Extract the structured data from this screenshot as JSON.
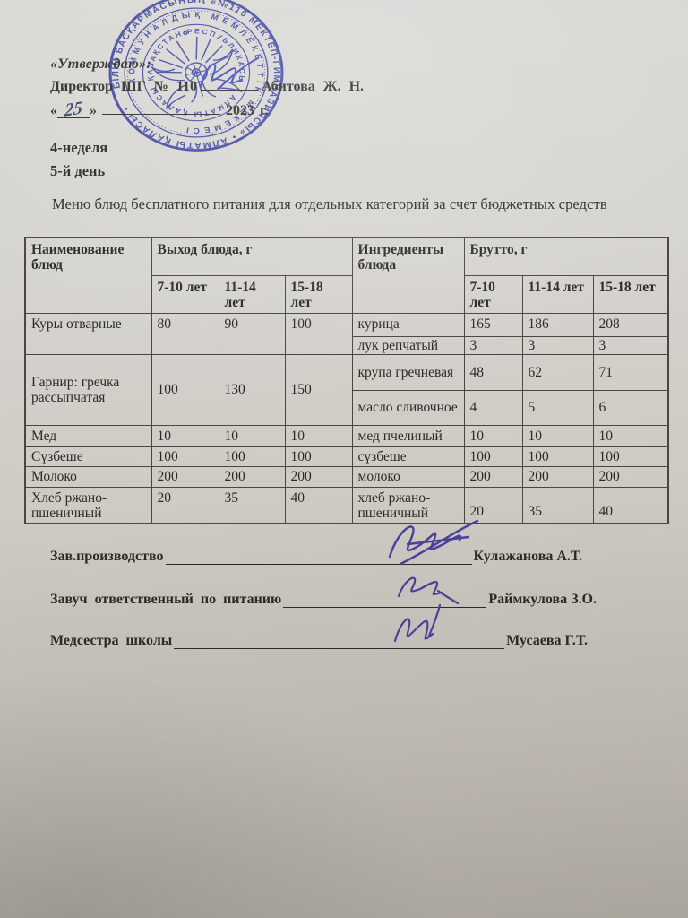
{
  "approval": {
    "approved_label": "«Утверждаю»:",
    "director_prefix": "Директор ШГ № 110",
    "director_name": "Абитова Ж. Н.",
    "date_open": "«",
    "date_day": "25",
    "date_close": "»",
    "date_year": "2023 г."
  },
  "meta": {
    "week_label": "4-неделя",
    "day_label": "5-й день"
  },
  "title": "Меню блюд бесплатного питания для отдельных категорий за счет бюджетных средств",
  "stamp": {
    "color": "#3c49c1",
    "outer_ring": "БІЛІМ БАСҚАРМАСЫНЫҢ «№110 МЕКТЕП-ГИМНАЗИЯСЫ» • АЛМАТЫ ҚАЛАСЫ •",
    "middle_ring": "КОММУНАЛДЫҚ МЕМЛЕКЕТТІК МЕКЕМЕСІ",
    "inner_ring": "ҚАЗАҚСТАН РЕСПУБЛИКАСЫ • АЛМАТЫ ҚАЛАСЫ"
  },
  "table": {
    "columns": {
      "name": "Наименование блюд",
      "yield_group": "Выход блюда, г",
      "ingredients": "Ингредиенты блюда",
      "brutto_group": "Брутто, г"
    },
    "age_groups": [
      "7-10 лет",
      "11-14 лет",
      "15-18 лет"
    ],
    "dishes": [
      {
        "name": "Куры отварные",
        "yield": [
          "80",
          "90",
          "100"
        ],
        "ingredients": [
          {
            "name": "курица",
            "brutto": [
              "165",
              "186",
              "208"
            ]
          },
          {
            "name": "лук репчатый",
            "brutto": [
              "3",
              "3",
              "3"
            ]
          }
        ]
      },
      {
        "name": "Гарнир: гречка рассыпчатая",
        "yield": [
          "100",
          "130",
          "150"
        ],
        "ingredients": [
          {
            "name": "крупа гречневая",
            "brutto": [
              "48",
              "62",
              "71"
            ]
          },
          {
            "name": "масло сливочное",
            "brutto": [
              "4",
              "5",
              "6"
            ]
          }
        ]
      },
      {
        "name": "Мед",
        "yield": [
          "10",
          "10",
          "10"
        ],
        "ingredients": [
          {
            "name": "мед пчелиный",
            "brutto": [
              "10",
              "10",
              "10"
            ]
          }
        ]
      },
      {
        "name": "Сүзбеше",
        "yield": [
          "100",
          "100",
          "100"
        ],
        "ingredients": [
          {
            "name": "сүзбеше",
            "brutto": [
              "100",
              "100",
              "100"
            ]
          }
        ]
      },
      {
        "name": "Молоко",
        "yield": [
          "200",
          "200",
          "200"
        ],
        "ingredients": [
          {
            "name": "молоко",
            "brutto": [
              "200",
              "200",
              "200"
            ]
          }
        ]
      },
      {
        "name": "Хлеб ржано-пшеничный",
        "yield": [
          "20",
          "35",
          "40"
        ],
        "ingredients": [
          {
            "name": "хлеб ржано-пшеничный",
            "brutto": [
              "20",
              "35",
              "40"
            ]
          }
        ]
      }
    ]
  },
  "signatures": [
    {
      "label": "Зав.производство",
      "name": "Кулажанова А.Т."
    },
    {
      "label": "Завуч ответственный по питанию",
      "name": "Раймкулова З.О."
    },
    {
      "label": "Медсестра школы",
      "name": "Мусаева Г.Т."
    }
  ]
}
